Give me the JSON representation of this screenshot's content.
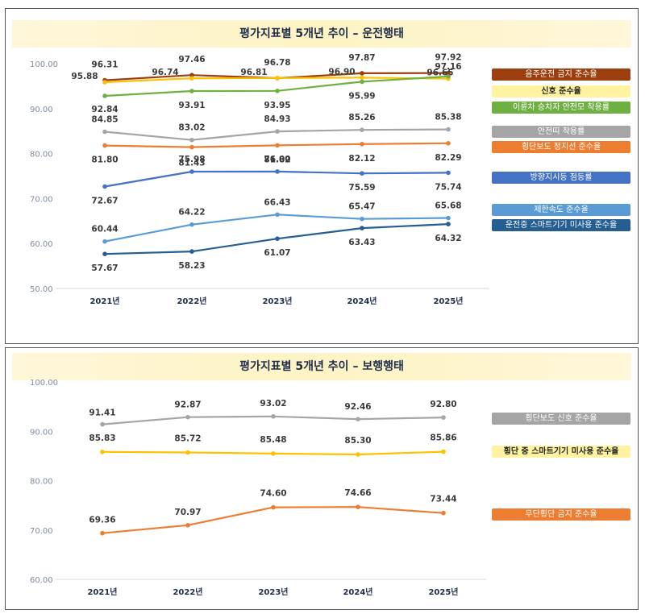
{
  "chart_data": [
    {
      "type": "line",
      "title": "평가지표별 5개년 추이 – 운전행태",
      "categories": [
        "2021년",
        "2022년",
        "2023년",
        "2024년",
        "2025년"
      ],
      "ylim": [
        50,
        100
      ],
      "yticks": [
        "50.00",
        "60.00",
        "70.00",
        "80.00",
        "90.00",
        "100.00"
      ],
      "grid": false,
      "legend_position": "right",
      "series": [
        {
          "name": "음주운전 금지 준수율",
          "color": "#9c3f0f",
          "text_color": "#ffffff",
          "values": [
            96.31,
            97.46,
            96.78,
            97.87,
            97.92
          ],
          "labels": [
            "96.31",
            "97.46",
            "96.78",
            "97.87",
            "97.92"
          ]
        },
        {
          "name": "신호 준수율",
          "color": "#fff2a0",
          "text_color": "#222222",
          "line_color": "#ffc000",
          "values": [
            95.88,
            96.74,
            96.81,
            96.9,
            96.65
          ],
          "labels": [
            "95.88",
            "96.74",
            "96.81",
            "96.90",
            "96.65"
          ]
        },
        {
          "name": "이륜차 승차자 안전모 착용률",
          "color": "#6fb043",
          "text_color": "#ffffff",
          "values": [
            92.84,
            93.91,
            93.95,
            95.99,
            97.16
          ],
          "labels": [
            "92.84",
            "93.91",
            "93.95",
            "95.99",
            "97.16"
          ]
        },
        {
          "name": "안전띠 착용률",
          "color": "#a5a5a5",
          "text_color": "#ffffff",
          "values": [
            84.85,
            83.02,
            84.93,
            85.26,
            85.38
          ],
          "labels": [
            "84.85",
            "83.02",
            "84.93",
            "85.26",
            "85.38"
          ]
        },
        {
          "name": "횡단보도 정지선 준수율",
          "color": "#ed7d31",
          "text_color": "#ffffff",
          "values": [
            81.8,
            81.43,
            81.82,
            82.12,
            82.29
          ],
          "labels": [
            "81.80",
            "81.43",
            "81.82",
            "82.12",
            "82.29"
          ]
        },
        {
          "name": "방향지시등 점등률",
          "color": "#4472c4",
          "text_color": "#ffffff",
          "values": [
            72.67,
            75.98,
            76.0,
            75.59,
            75.74
          ],
          "labels": [
            "72.67",
            "75.98",
            "76.00",
            "75.59",
            "75.74"
          ]
        },
        {
          "name": "제한속도 준수율",
          "color": "#5b9bd5",
          "text_color": "#ffffff",
          "values": [
            60.44,
            64.22,
            66.43,
            65.47,
            65.68
          ],
          "labels": [
            "60.44",
            "64.22",
            "66.43",
            "65.47",
            "65.68"
          ]
        },
        {
          "name": "운전중 스마트기기 미사용 준수율",
          "color": "#255e91",
          "text_color": "#ffffff",
          "values": [
            57.67,
            58.23,
            61.07,
            63.43,
            64.32
          ],
          "labels": [
            "57.67",
            "58.23",
            "61.07",
            "63.43",
            "64.32"
          ]
        }
      ]
    },
    {
      "type": "line",
      "title": "평가지표별 5개년 추이 – 보행행태",
      "categories": [
        "2021년",
        "2022년",
        "2023년",
        "2024년",
        "2025년"
      ],
      "ylim": [
        60,
        100
      ],
      "yticks": [
        "60.00",
        "70.00",
        "80.00",
        "90.00",
        "100.00"
      ],
      "grid": false,
      "legend_position": "right",
      "series": [
        {
          "name": "횡단보도 신호 준수율",
          "color": "#a5a5a5",
          "text_color": "#ffffff",
          "values": [
            91.41,
            92.87,
            93.02,
            92.46,
            92.8
          ],
          "labels": [
            "91.41",
            "92.87",
            "93.02",
            "92.46",
            "92.80"
          ]
        },
        {
          "name": "횡단 중 스마트기기 미사용 준수율",
          "color": "#fff2a0",
          "text_color": "#222222",
          "line_color": "#ffc000",
          "values": [
            85.83,
            85.72,
            85.48,
            85.3,
            85.86
          ],
          "labels": [
            "85.83",
            "85.72",
            "85.48",
            "85.30",
            "85.86"
          ]
        },
        {
          "name": "무단횡단 금지 준수율",
          "color": "#ed7d31",
          "text_color": "#ffffff",
          "values": [
            69.36,
            70.97,
            74.6,
            74.66,
            73.44
          ],
          "labels": [
            "69.36",
            "70.97",
            "74.60",
            "74.66",
            "73.44"
          ]
        }
      ]
    }
  ]
}
